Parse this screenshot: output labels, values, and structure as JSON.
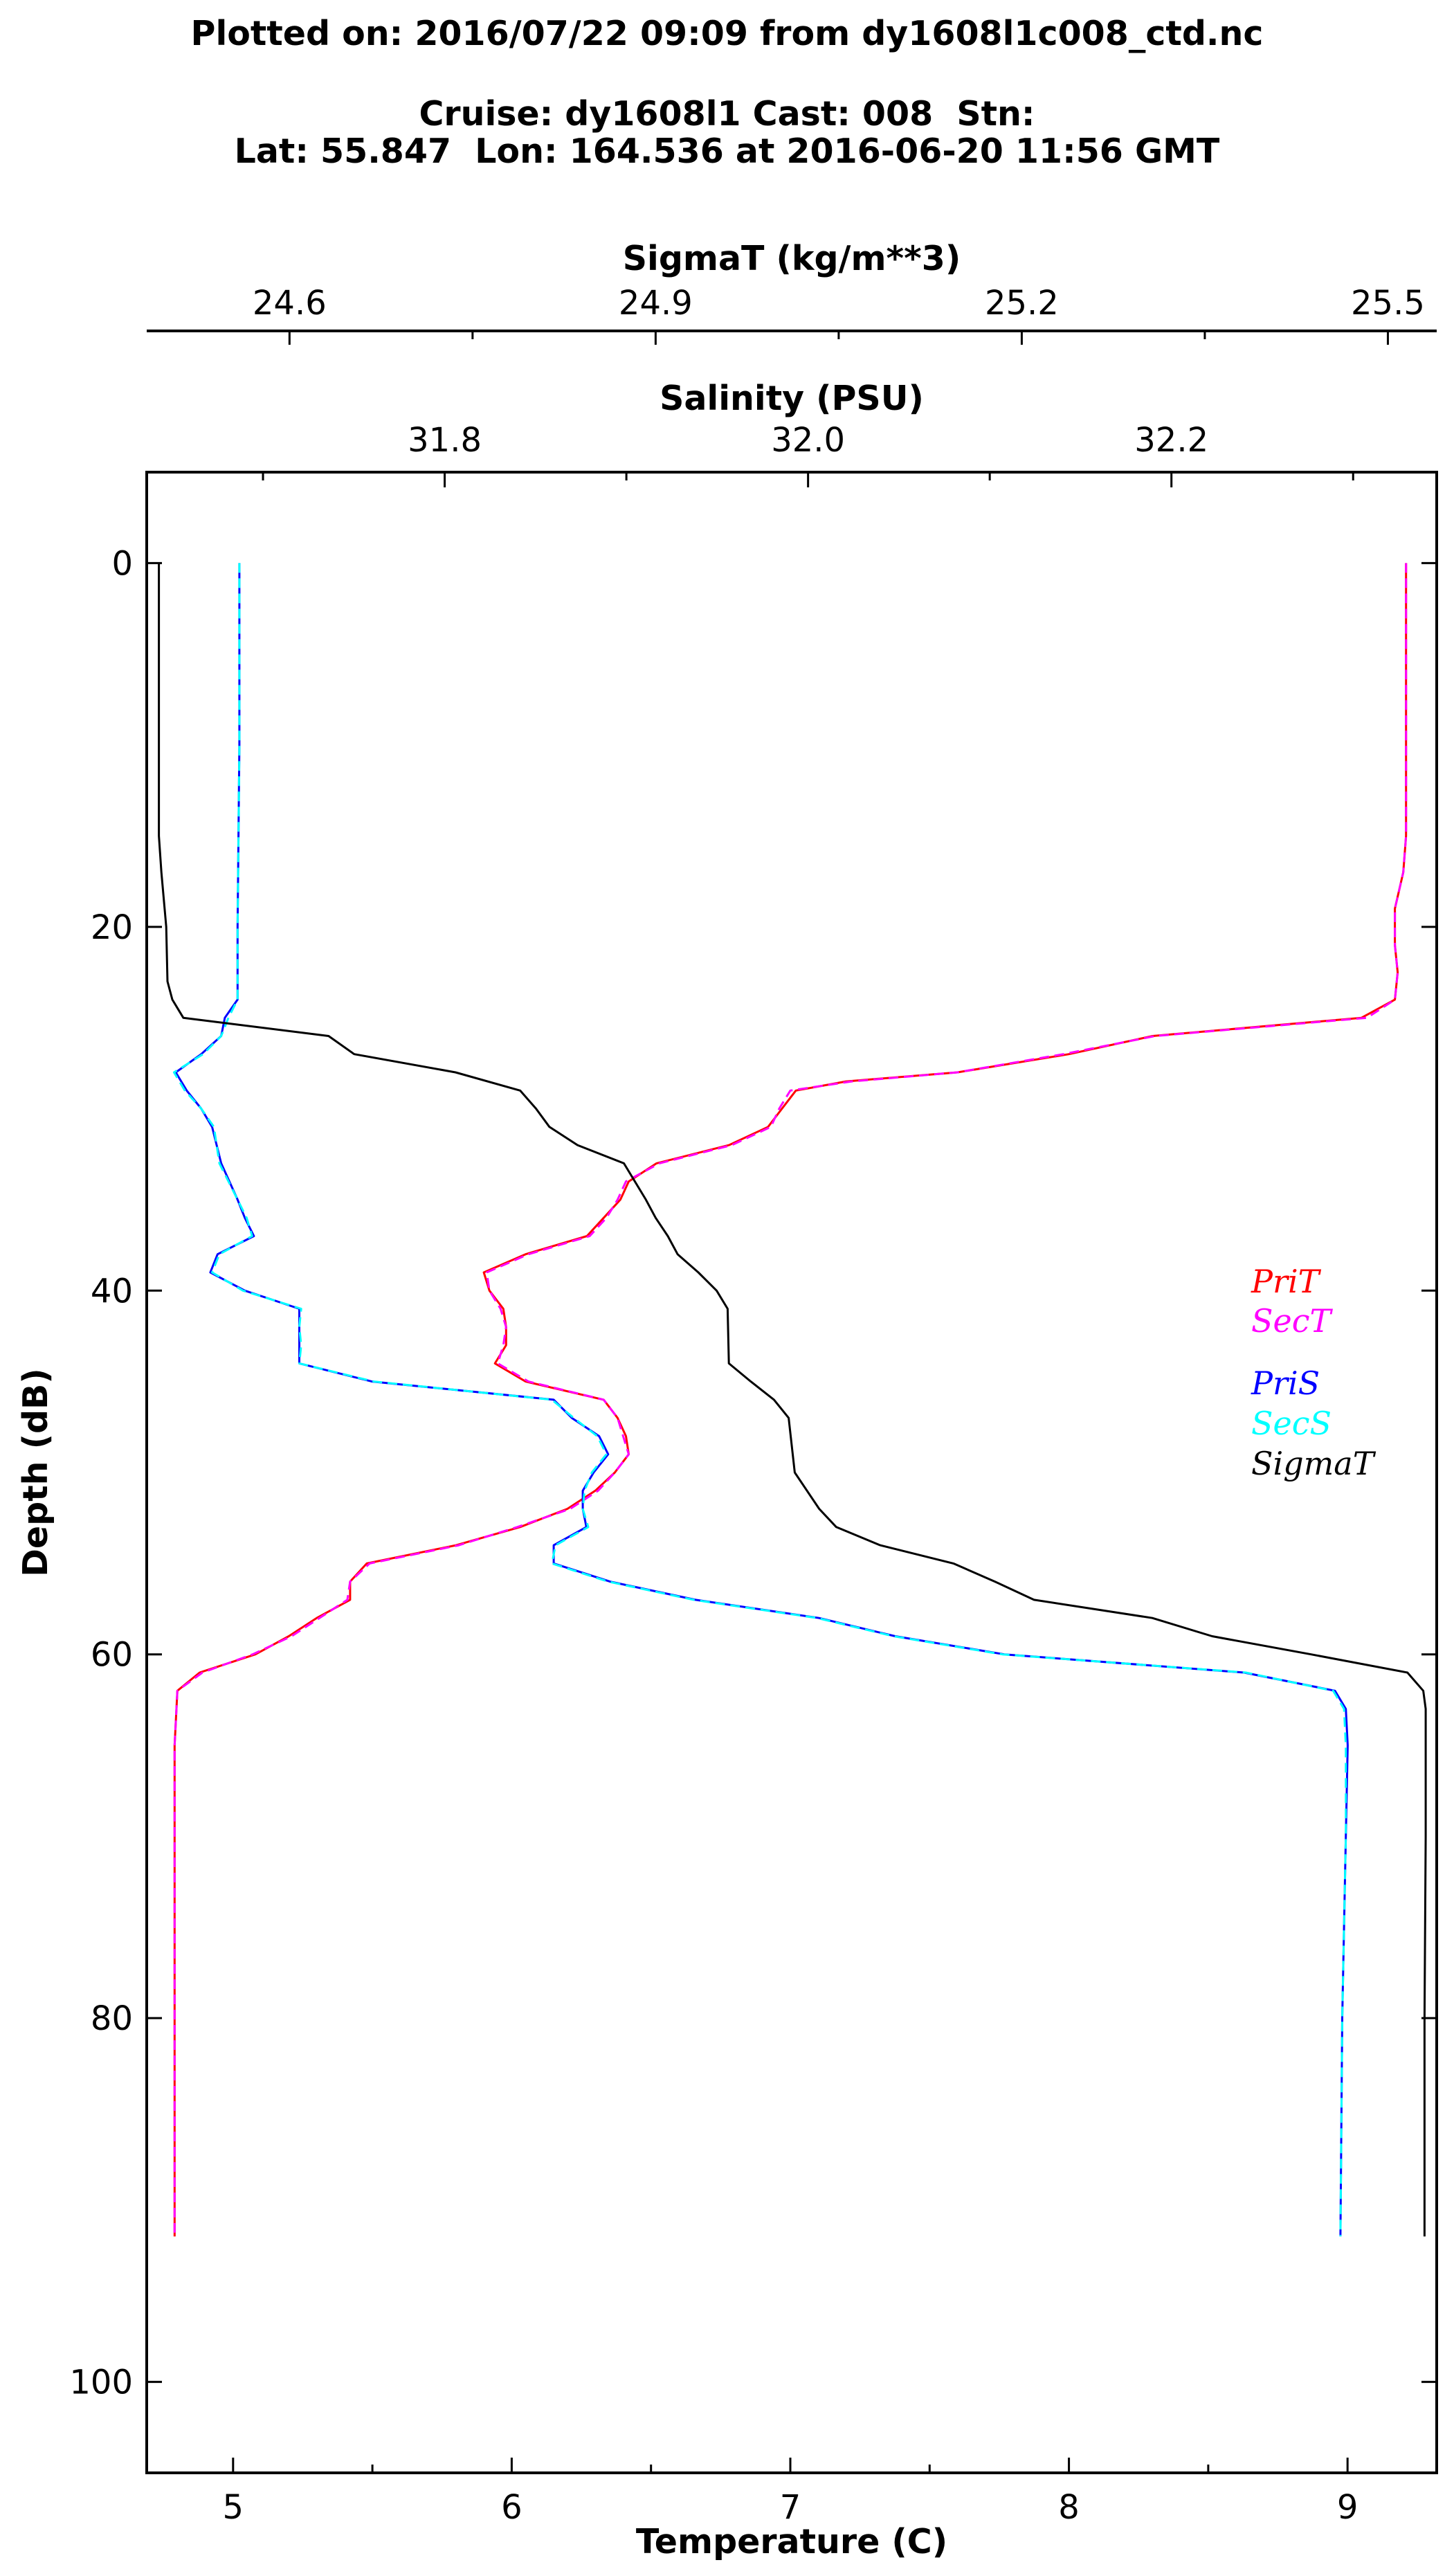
{
  "header": {
    "line1": "Plotted on: 2016/07/22 09:09 from dy1608l1c008_ctd.nc",
    "line2": "Cruise: dy1608l1 Cast: 008  Stn:",
    "line3": "Lat: 55.847  Lon: 164.536 at 2016-06-20 11:56 GMT"
  },
  "chart_data": {
    "type": "line",
    "title": "Plotted on: 2016/07/22 09:09 from dy1608l1c008_ctd.nc",
    "axes": {
      "depth": {
        "label": "Depth (dB)",
        "range": [
          105,
          -5
        ],
        "ticks": [
          0,
          20,
          40,
          60,
          80,
          100
        ],
        "inverted": true
      },
      "temperature": {
        "label": "Temperature (C)",
        "range": [
          4.69,
          9.32
        ],
        "ticks": [
          5,
          6,
          7,
          8,
          9
        ]
      },
      "salinity": {
        "label": "Salinity (PSU)",
        "range": [
          31.636,
          32.346
        ],
        "ticks": [
          31.8,
          32.0,
          32.2
        ],
        "tick_labels": [
          "31.8",
          "32.0",
          "32.2"
        ]
      },
      "sigmat": {
        "label": "SigmaT (kg/m**3)",
        "range": [
          24.483,
          25.54
        ],
        "ticks": [
          24.6,
          24.9,
          25.2,
          25.5
        ],
        "tick_labels": [
          "24.6",
          "24.9",
          "25.2",
          "25.5"
        ]
      }
    },
    "legend_placement": "right",
    "legend": [
      "PriT",
      "SecT",
      "PriS",
      "SecS",
      "SigmaT"
    ],
    "series": [
      {
        "name": "PriT",
        "axis": "temperature",
        "color": "#ff0000",
        "dash": "",
        "depth": [
          0,
          5,
          10,
          15,
          17,
          19,
          21,
          22.5,
          24,
          25,
          26,
          27,
          28,
          28.5,
          29,
          30,
          31,
          32,
          33,
          34,
          35,
          36,
          37,
          38,
          39,
          40,
          41,
          42,
          43,
          44,
          45,
          46,
          47,
          48,
          49,
          50,
          51,
          52,
          53,
          54,
          55,
          56,
          57,
          58,
          59,
          60,
          61,
          62,
          65,
          70,
          80,
          92
        ],
        "values": [
          9.21,
          9.21,
          9.21,
          9.21,
          9.2,
          9.17,
          9.17,
          9.18,
          9.17,
          9.05,
          8.3,
          8.0,
          7.6,
          7.2,
          7.02,
          6.97,
          6.92,
          6.78,
          6.52,
          6.42,
          6.39,
          6.33,
          6.27,
          6.05,
          5.9,
          5.92,
          5.97,
          5.98,
          5.98,
          5.94,
          6.05,
          6.33,
          6.38,
          6.41,
          6.42,
          6.37,
          6.3,
          6.2,
          6.03,
          5.8,
          5.48,
          5.42,
          5.42,
          5.3,
          5.2,
          5.08,
          4.88,
          4.8,
          4.79,
          4.79,
          4.79,
          4.79
        ]
      },
      {
        "name": "SecT",
        "axis": "temperature",
        "color": "#ff00ff",
        "dash": "14 8",
        "depth": [
          0,
          5,
          10,
          15,
          17,
          19,
          21,
          22.5,
          24,
          25,
          26,
          27,
          28,
          28.5,
          29,
          30,
          31,
          32,
          33,
          34,
          35,
          36,
          37,
          38,
          39,
          40,
          41,
          42,
          43,
          44,
          45,
          46,
          47,
          48,
          49,
          50,
          51,
          52,
          53,
          54,
          55,
          56,
          57,
          58,
          59,
          60,
          61,
          62,
          65,
          70,
          80,
          92
        ],
        "values": [
          9.21,
          9.21,
          9.21,
          9.21,
          9.2,
          9.17,
          9.17,
          9.18,
          9.17,
          9.07,
          8.31,
          7.98,
          7.6,
          7.22,
          7.0,
          6.96,
          6.93,
          6.79,
          6.53,
          6.41,
          6.38,
          6.34,
          6.28,
          6.06,
          5.91,
          5.92,
          5.96,
          5.98,
          5.97,
          5.95,
          6.06,
          6.33,
          6.38,
          6.4,
          6.42,
          6.37,
          6.31,
          6.21,
          6.02,
          5.81,
          5.49,
          5.42,
          5.41,
          5.31,
          5.21,
          5.07,
          4.89,
          4.8,
          4.79,
          4.79,
          4.79,
          4.79
        ]
      },
      {
        "name": "PriS",
        "axis": "salinity",
        "color": "#0000ff",
        "dash": "",
        "depth": [
          0,
          10,
          20,
          24,
          25,
          26,
          27,
          28,
          29,
          30,
          31,
          33,
          35,
          36,
          37,
          38,
          39,
          40,
          41,
          42,
          43,
          44,
          45,
          46,
          47,
          48,
          49,
          50,
          51,
          52,
          53,
          54,
          55,
          56,
          57,
          58,
          59,
          60,
          61,
          62,
          63,
          65,
          70,
          80,
          92
        ],
        "values": [
          31.687,
          31.687,
          31.686,
          31.686,
          31.679,
          31.677,
          31.666,
          31.652,
          31.658,
          31.666,
          31.672,
          31.677,
          31.686,
          31.69,
          31.695,
          31.675,
          31.671,
          31.69,
          31.72,
          31.72,
          31.72,
          31.72,
          31.76,
          31.86,
          31.87,
          31.885,
          31.89,
          31.882,
          31.876,
          31.876,
          31.878,
          31.86,
          31.86,
          31.891,
          31.938,
          32.006,
          32.048,
          32.108,
          32.24,
          32.29,
          32.296,
          32.297,
          32.296,
          32.294,
          32.293
        ]
      },
      {
        "name": "SecS",
        "axis": "salinity",
        "color": "#00ffff",
        "dash": "14 8",
        "depth": [
          0,
          10,
          20,
          24,
          25,
          26,
          27,
          28,
          29,
          30,
          31,
          33,
          35,
          36,
          37,
          38,
          39,
          40,
          41,
          42,
          43,
          44,
          45,
          46,
          47,
          48,
          49,
          50,
          51,
          52,
          53,
          54,
          55,
          56,
          57,
          58,
          59,
          60,
          61,
          62,
          63,
          65,
          70,
          80,
          92
        ],
        "values": [
          31.687,
          31.687,
          31.686,
          31.686,
          31.681,
          31.677,
          31.667,
          31.651,
          31.657,
          31.666,
          31.673,
          31.676,
          31.686,
          31.691,
          31.694,
          31.676,
          31.672,
          31.689,
          31.721,
          31.72,
          31.721,
          31.72,
          31.761,
          31.859,
          31.871,
          31.884,
          31.889,
          31.881,
          31.877,
          31.876,
          31.879,
          31.861,
          31.859,
          31.89,
          31.937,
          32.005,
          32.047,
          32.107,
          32.241,
          32.289,
          32.295,
          32.296,
          32.296,
          32.294,
          32.293
        ]
      },
      {
        "name": "SigmaT",
        "axis": "sigmat",
        "color": "#000000",
        "dash": "",
        "depth": [
          0,
          10,
          15,
          17,
          20,
          23,
          24,
          25,
          26,
          27,
          28,
          29,
          30,
          31,
          32,
          33,
          34,
          35,
          36,
          37,
          38,
          39,
          40,
          41,
          44,
          45,
          46,
          47,
          50,
          52,
          53,
          54,
          55,
          56,
          57,
          58,
          59,
          60,
          61,
          62,
          63,
          65,
          70,
          80,
          92
        ],
        "values": [
          24.493,
          24.493,
          24.493,
          24.495,
          24.499,
          24.5,
          24.504,
          24.513,
          24.632,
          24.653,
          24.736,
          24.789,
          24.802,
          24.813,
          24.836,
          24.874,
          24.883,
          24.892,
          24.9,
          24.91,
          24.918,
          24.935,
          24.95,
          24.959,
          24.96,
          24.978,
          24.997,
          25.009,
          25.014,
          25.034,
          25.048,
          25.084,
          25.144,
          25.178,
          25.21,
          25.307,
          25.356,
          25.437,
          25.516,
          25.529,
          25.531,
          25.531,
          25.531,
          25.53,
          25.53
        ]
      }
    ]
  }
}
